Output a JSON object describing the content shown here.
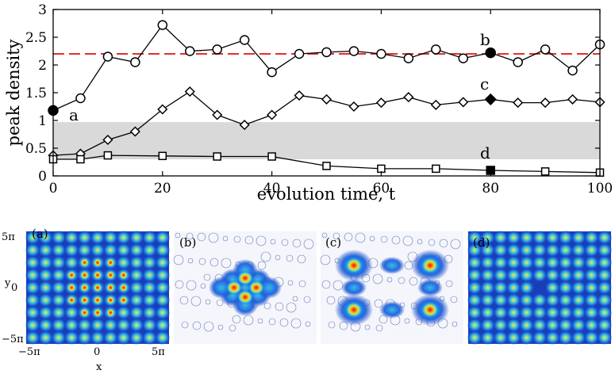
{
  "chart_data": [
    {
      "type": "line",
      "title": "",
      "xlabel": "evolution time, t",
      "ylabel": "peak density",
      "xlim": [
        0,
        100
      ],
      "ylim": [
        0,
        3
      ],
      "xticks": [
        "0",
        "20",
        "40",
        "60",
        "80",
        "100"
      ],
      "yticks": [
        "0",
        "0.5",
        "1",
        "1.5",
        "2",
        "2.5",
        "3"
      ],
      "reference_line": {
        "y": 2.2,
        "style": "dashed",
        "color": "#e03030"
      },
      "shaded_band": {
        "y0": 0.3,
        "y1": 0.97,
        "color": "#d9d9d9"
      },
      "series": [
        {
          "name": "circles",
          "marker": "circle",
          "x": [
            0,
            5,
            10,
            15,
            20,
            25,
            30,
            35,
            40,
            45,
            50,
            55,
            60,
            65,
            70,
            75,
            80,
            85,
            90,
            95,
            100
          ],
          "values": [
            1.18,
            1.4,
            2.15,
            2.05,
            2.72,
            2.25,
            2.28,
            2.45,
            1.87,
            2.2,
            2.23,
            2.25,
            2.2,
            2.12,
            2.28,
            2.12,
            2.22,
            2.05,
            2.28,
            1.9,
            2.37
          ]
        },
        {
          "name": "diamonds",
          "marker": "diamond",
          "x": [
            0,
            5,
            10,
            15,
            20,
            25,
            30,
            35,
            40,
            45,
            50,
            55,
            60,
            65,
            70,
            75,
            80,
            85,
            90,
            95,
            100
          ],
          "values": [
            0.37,
            0.4,
            0.65,
            0.8,
            1.2,
            1.52,
            1.1,
            0.92,
            1.1,
            1.45,
            1.38,
            1.25,
            1.32,
            1.42,
            1.28,
            1.33,
            1.38,
            1.32,
            1.32,
            1.38,
            1.33
          ]
        },
        {
          "name": "squares",
          "marker": "square",
          "x": [
            0,
            5,
            10,
            20,
            30,
            40,
            50,
            60,
            70,
            80,
            90,
            100
          ],
          "values": [
            0.3,
            0.3,
            0.37,
            0.36,
            0.35,
            0.35,
            0.18,
            0.13,
            0.13,
            0.1,
            0.08,
            0.06
          ]
        }
      ],
      "highlighted_points": [
        {
          "label": "a",
          "series": "circles",
          "x": 0,
          "y": 1.18
        },
        {
          "label": "b",
          "series": "circles",
          "x": 80,
          "y": 2.22
        },
        {
          "label": "c",
          "series": "diamonds",
          "x": 80,
          "y": 1.38
        },
        {
          "label": "d",
          "series": "squares",
          "x": 80,
          "y": 0.1
        }
      ]
    },
    {
      "type": "heatmap",
      "panels": [
        {
          "label": "(a)",
          "pattern": "center_lattice"
        },
        {
          "label": "(b)",
          "pattern": "single_peak"
        },
        {
          "label": "(c)",
          "pattern": "four_peaks"
        },
        {
          "label": "(d)",
          "pattern": "uniform_lattice"
        }
      ],
      "xlabel": "x",
      "ylabel": "y",
      "xticks": [
        "−5π",
        "0",
        "5π"
      ],
      "yticks": [
        "5π",
        "0",
        "−5π"
      ],
      "colormap": "jet"
    }
  ]
}
